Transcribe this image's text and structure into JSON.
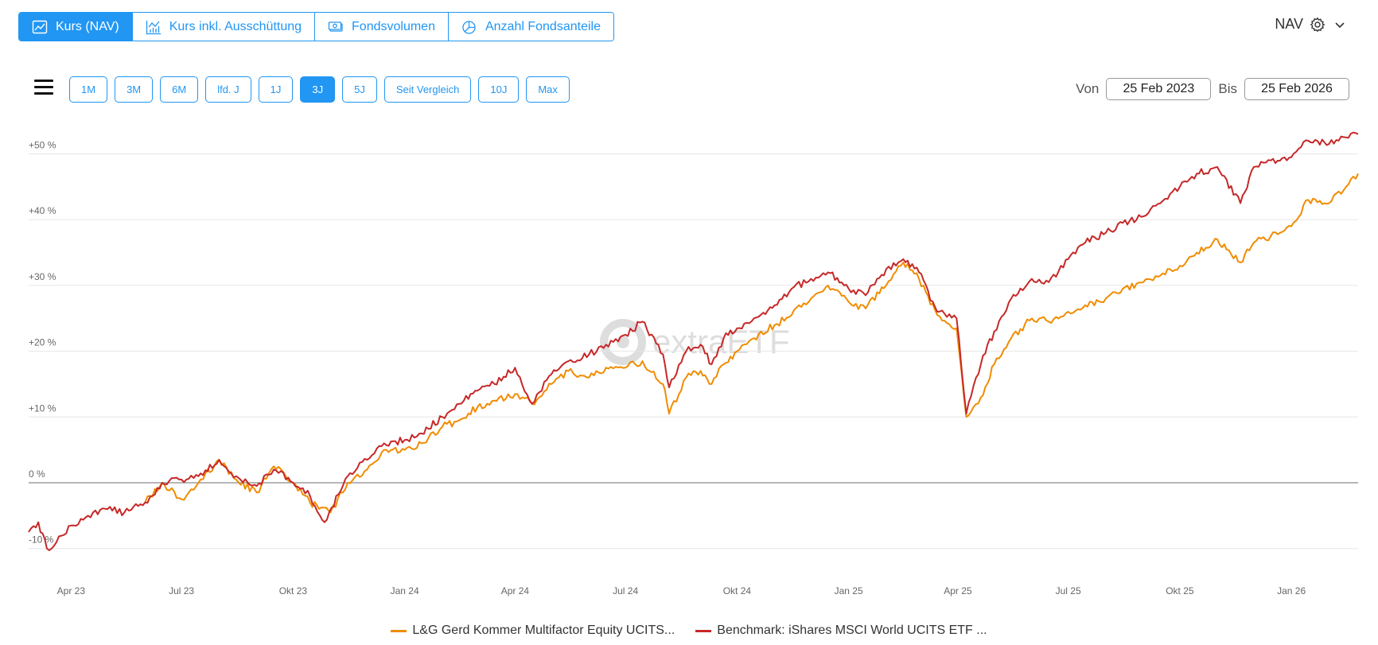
{
  "tabs": [
    {
      "label": "Kurs (NAV)",
      "icon": "line-chart-icon",
      "active": true
    },
    {
      "label": "Kurs inkl. Ausschüttung",
      "icon": "bar-line-chart-icon",
      "active": false
    },
    {
      "label": "Fondsvolumen",
      "icon": "banknote-icon",
      "active": false
    },
    {
      "label": "Anzahl Fondsanteile",
      "icon": "pie-chart-icon",
      "active": false
    }
  ],
  "nav_selector": {
    "label": "NAV",
    "icon": "gear-icon"
  },
  "ranges": [
    "1M",
    "3M",
    "6M",
    "lfd. J",
    "1J",
    "3J",
    "5J",
    "Seit Vergleich",
    "10J",
    "Max"
  ],
  "active_range": "3J",
  "date_range": {
    "from_label": "Von",
    "from": "25 Feb 2023",
    "to_label": "Bis",
    "to": "25 Feb 2026"
  },
  "watermark": "extraETF",
  "colors": {
    "accent": "#2196f3",
    "fund": "#f08c00",
    "benchmark": "#c62828"
  },
  "chart_data": {
    "type": "line",
    "title": "",
    "xlabel": "",
    "ylabel": "",
    "ylim": [
      -12,
      53
    ],
    "xlim": [
      "2023-02-25",
      "2026-02-25"
    ],
    "y_ticks": [
      {
        "value": 50,
        "label": "+50 %"
      },
      {
        "value": 40,
        "label": "+40 %"
      },
      {
        "value": 30,
        "label": "+30 %"
      },
      {
        "value": 20,
        "label": "+20 %"
      },
      {
        "value": 10,
        "label": "+10 %"
      },
      {
        "value": 0,
        "label": "0 %"
      },
      {
        "value": -10,
        "label": "-10 %"
      }
    ],
    "x_ticks": [
      {
        "date": "2023-04-01",
        "label": "Apr 23"
      },
      {
        "date": "2023-07-01",
        "label": "Jul 23"
      },
      {
        "date": "2023-10-01",
        "label": "Okt 23"
      },
      {
        "date": "2024-01-01",
        "label": "Jan 24"
      },
      {
        "date": "2024-04-01",
        "label": "Apr 24"
      },
      {
        "date": "2024-07-01",
        "label": "Jul 24"
      },
      {
        "date": "2024-10-01",
        "label": "Okt 24"
      },
      {
        "date": "2025-01-01",
        "label": "Jan 25"
      },
      {
        "date": "2025-04-01",
        "label": "Apr 25"
      },
      {
        "date": "2025-07-01",
        "label": "Jul 25"
      },
      {
        "date": "2025-10-01",
        "label": "Okt 25"
      },
      {
        "date": "2026-01-01",
        "label": "Jan 26"
      }
    ],
    "legend_position": "bottom",
    "series": [
      {
        "name": "L&G Gerd Kommer Multifactor Equity UCITS...",
        "color": "#f08c00",
        "points": [
          [
            "2023-06-01",
            -3
          ],
          [
            "2023-06-15",
            0
          ],
          [
            "2023-07-01",
            -2.5
          ],
          [
            "2023-07-15",
            0
          ],
          [
            "2023-08-01",
            3.5
          ],
          [
            "2023-08-15",
            0.5
          ],
          [
            "2023-09-01",
            -1.5
          ],
          [
            "2023-09-15",
            2.5
          ],
          [
            "2023-10-01",
            0
          ],
          [
            "2023-10-15",
            -3
          ],
          [
            "2023-11-01",
            -4.5
          ],
          [
            "2023-11-15",
            0
          ],
          [
            "2023-12-01",
            2
          ],
          [
            "2023-12-15",
            5
          ],
          [
            "2024-01-01",
            5
          ],
          [
            "2024-01-15",
            6
          ],
          [
            "2024-02-01",
            8.5
          ],
          [
            "2024-02-15",
            9.5
          ],
          [
            "2024-03-01",
            11.5
          ],
          [
            "2024-03-15",
            12.5
          ],
          [
            "2024-04-01",
            13.5
          ],
          [
            "2024-04-15",
            12
          ],
          [
            "2024-05-01",
            15
          ],
          [
            "2024-05-15",
            17
          ],
          [
            "2024-06-01",
            16
          ],
          [
            "2024-06-15",
            17.5
          ],
          [
            "2024-07-01",
            17.5
          ],
          [
            "2024-07-15",
            18.5
          ],
          [
            "2024-08-01",
            15
          ],
          [
            "2024-08-06",
            10.5
          ],
          [
            "2024-08-20",
            16
          ],
          [
            "2024-09-01",
            17
          ],
          [
            "2024-09-10",
            15
          ],
          [
            "2024-09-20",
            18
          ],
          [
            "2024-10-01",
            20
          ],
          [
            "2024-10-15",
            22
          ],
          [
            "2024-11-01",
            24
          ],
          [
            "2024-11-15",
            25.5
          ],
          [
            "2024-12-01",
            28
          ],
          [
            "2024-12-15",
            30
          ],
          [
            "2025-01-01",
            27.5
          ],
          [
            "2025-01-15",
            26.5
          ],
          [
            "2025-02-01",
            30
          ],
          [
            "2025-02-15",
            33.5
          ],
          [
            "2025-02-28",
            31
          ],
          [
            "2025-03-15",
            25.5
          ],
          [
            "2025-03-31",
            23.5
          ],
          [
            "2025-04-08",
            10
          ],
          [
            "2025-04-20",
            13
          ],
          [
            "2025-05-01",
            18
          ],
          [
            "2025-05-15",
            22
          ],
          [
            "2025-06-01",
            25
          ],
          [
            "2025-06-15",
            24.5
          ],
          [
            "2025-07-01",
            26
          ],
          [
            "2025-07-15",
            27
          ],
          [
            "2025-08-01",
            28
          ],
          [
            "2025-08-15",
            29.5
          ],
          [
            "2025-09-01",
            30.5
          ],
          [
            "2025-09-15",
            31.5
          ],
          [
            "2025-10-01",
            33
          ],
          [
            "2025-10-15",
            35
          ],
          [
            "2025-11-01",
            37
          ],
          [
            "2025-11-20",
            33.5
          ],
          [
            "2025-12-01",
            36.5
          ],
          [
            "2025-12-15",
            37.5
          ],
          [
            "2026-01-01",
            39
          ],
          [
            "2026-01-15",
            43
          ],
          [
            "2026-02-01",
            42.5
          ],
          [
            "2026-02-15",
            45
          ],
          [
            "2026-02-25",
            47
          ]
        ]
      },
      {
        "name": "Benchmark: iShares MSCI World UCITS ETF ...",
        "color": "#c62828",
        "points": [
          [
            "2023-02-25",
            -7.5
          ],
          [
            "2023-03-05",
            -6
          ],
          [
            "2023-03-12",
            -10
          ],
          [
            "2023-03-20",
            -9
          ],
          [
            "2023-04-01",
            -6.5
          ],
          [
            "2023-04-15",
            -5
          ],
          [
            "2023-05-01",
            -4
          ],
          [
            "2023-05-15",
            -4.5
          ],
          [
            "2023-06-01",
            -3
          ],
          [
            "2023-06-15",
            0
          ],
          [
            "2023-07-01",
            0.5
          ],
          [
            "2023-07-15",
            1
          ],
          [
            "2023-08-01",
            3.5
          ],
          [
            "2023-08-15",
            1
          ],
          [
            "2023-09-01",
            -0.5
          ],
          [
            "2023-09-15",
            2
          ],
          [
            "2023-10-01",
            0
          ],
          [
            "2023-10-15",
            -2
          ],
          [
            "2023-10-27",
            -6
          ],
          [
            "2023-11-15",
            1
          ],
          [
            "2023-12-01",
            3.5
          ],
          [
            "2023-12-15",
            6
          ],
          [
            "2024-01-01",
            6.5
          ],
          [
            "2024-01-15",
            7.5
          ],
          [
            "2024-02-01",
            10
          ],
          [
            "2024-02-15",
            12
          ],
          [
            "2024-03-01",
            14
          ],
          [
            "2024-03-15",
            15
          ],
          [
            "2024-04-01",
            17.5
          ],
          [
            "2024-04-15",
            12
          ],
          [
            "2024-05-01",
            16.5
          ],
          [
            "2024-05-15",
            18.5
          ],
          [
            "2024-06-01",
            19.5
          ],
          [
            "2024-06-15",
            21
          ],
          [
            "2024-07-01",
            22.5
          ],
          [
            "2024-07-15",
            24.5
          ],
          [
            "2024-08-01",
            19.5
          ],
          [
            "2024-08-06",
            14.5
          ],
          [
            "2024-08-20",
            20
          ],
          [
            "2024-09-01",
            21
          ],
          [
            "2024-09-10",
            18
          ],
          [
            "2024-09-20",
            22
          ],
          [
            "2024-10-01",
            23.5
          ],
          [
            "2024-10-15",
            25
          ],
          [
            "2024-11-01",
            27
          ],
          [
            "2024-11-15",
            29.5
          ],
          [
            "2024-12-01",
            31
          ],
          [
            "2024-12-15",
            32
          ],
          [
            "2025-01-01",
            29.5
          ],
          [
            "2025-01-15",
            28.5
          ],
          [
            "2025-02-01",
            32.5
          ],
          [
            "2025-02-15",
            34
          ],
          [
            "2025-02-28",
            32
          ],
          [
            "2025-03-15",
            26
          ],
          [
            "2025-03-31",
            25
          ],
          [
            "2025-04-08",
            10.5
          ],
          [
            "2025-04-20",
            18
          ],
          [
            "2025-05-01",
            23
          ],
          [
            "2025-05-15",
            28
          ],
          [
            "2025-06-01",
            31
          ],
          [
            "2025-06-15",
            30.5
          ],
          [
            "2025-07-01",
            34
          ],
          [
            "2025-07-15",
            36.5
          ],
          [
            "2025-08-01",
            38
          ],
          [
            "2025-08-15",
            39.5
          ],
          [
            "2025-09-01",
            40.5
          ],
          [
            "2025-09-15",
            42.5
          ],
          [
            "2025-10-01",
            45
          ],
          [
            "2025-10-15",
            47
          ],
          [
            "2025-11-01",
            48
          ],
          [
            "2025-11-20",
            42.5
          ],
          [
            "2025-12-01",
            48
          ],
          [
            "2025-12-15",
            49
          ],
          [
            "2026-01-01",
            49.5
          ],
          [
            "2026-01-15",
            52
          ],
          [
            "2026-02-01",
            51.5
          ],
          [
            "2026-02-15",
            52.5
          ],
          [
            "2026-02-25",
            53
          ]
        ]
      }
    ]
  }
}
